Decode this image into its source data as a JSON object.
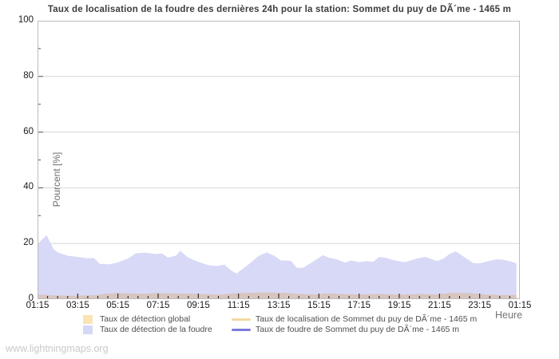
{
  "title": "Taux de localisation de la foudre des dernières 24h pour la station: Sommet du puy de DÃ´me - 1465 m",
  "watermark": "www.lightningmaps.org",
  "colors": {
    "grid": "#d6d6d6",
    "border": "#bdbdbd",
    "x_tick": "#111111",
    "y_tick": "#555555",
    "detection_foudre_fill": "#d8d9f6",
    "detection_global_rendered_fill": "#d8c5c0",
    "detection_global_swatch": "#fbe3b4",
    "localisation_line": "#f2d8a0",
    "foudre_line": "#7b7cd9"
  },
  "y_axis": {
    "label": "Pourcent  [%]",
    "major_ticks": [
      0,
      20,
      40,
      60,
      80,
      100
    ],
    "minor_ticks": [
      10,
      30,
      50,
      70,
      90
    ],
    "gridlines": [
      20,
      40,
      60,
      80
    ],
    "min": 0,
    "max": 100
  },
  "x_axis": {
    "label": "Heure",
    "tick_labels": [
      "01:15",
      "03:15",
      "05:15",
      "07:15",
      "09:15",
      "11:15",
      "13:15",
      "15:15",
      "17:15",
      "19:15",
      "21:15",
      "23:15",
      "01:15"
    ],
    "label_interval_hours": 2,
    "minor_tick_interval_hours": 0.5,
    "span_hours": 24
  },
  "legend": {
    "global": {
      "label": "Taux de détection global",
      "swatch": "box",
      "color": "#fbe3b4"
    },
    "foudre": {
      "label": "Taux de détection de la foudre",
      "swatch": "box",
      "color": "#d6d8f7"
    },
    "localisation_line": {
      "label": "Taux de localisation de Sommet du puy de DÃ´me - 1465 m",
      "swatch": "line",
      "color": "#f2d8a0"
    },
    "foudre_line": {
      "label": "Taux de foudre de Sommet du puy de DÃ´me - 1465 m",
      "swatch": "line",
      "color": "#7b7cd9"
    }
  },
  "chart_data": {
    "type": "area",
    "title": "Taux de localisation de la foudre des dernières 24h pour la station: Sommet du puy de DÃ´me - 1465 m",
    "xlabel": "Heure",
    "ylabel": "Pourcent  [%]",
    "x_is_hours_after": "01:15",
    "xlim": [
      0,
      24
    ],
    "ylim": [
      0,
      100
    ],
    "grid": "horizontal-only",
    "legend_position": "bottom",
    "series": [
      {
        "name": "Taux de détection de la foudre",
        "type": "area",
        "color": "#d8d9f6",
        "points": [
          [
            0,
            19.8
          ],
          [
            0.45,
            23.0
          ],
          [
            0.8,
            18.0
          ],
          [
            1.0,
            16.8
          ],
          [
            1.5,
            15.6
          ],
          [
            2.0,
            15.2
          ],
          [
            2.5,
            14.7
          ],
          [
            2.8,
            14.8
          ],
          [
            3.1,
            12.7
          ],
          [
            3.6,
            12.5
          ],
          [
            4.0,
            13.2
          ],
          [
            4.5,
            14.6
          ],
          [
            4.9,
            16.5
          ],
          [
            5.4,
            16.7
          ],
          [
            5.9,
            16.2
          ],
          [
            6.2,
            16.4
          ],
          [
            6.5,
            14.9
          ],
          [
            6.9,
            15.7
          ],
          [
            7.1,
            17.4
          ],
          [
            7.5,
            14.9
          ],
          [
            8.0,
            13.4
          ],
          [
            8.5,
            12.2
          ],
          [
            8.9,
            11.9
          ],
          [
            9.3,
            12.4
          ],
          [
            9.6,
            10.5
          ],
          [
            9.9,
            9.2
          ],
          [
            10.5,
            12.5
          ],
          [
            11.0,
            15.5
          ],
          [
            11.4,
            16.8
          ],
          [
            11.8,
            15.5
          ],
          [
            12.1,
            13.9
          ],
          [
            12.6,
            13.8
          ],
          [
            12.9,
            11.3
          ],
          [
            13.2,
            11.2
          ],
          [
            13.6,
            13.0
          ],
          [
            14.2,
            15.8
          ],
          [
            14.5,
            14.9
          ],
          [
            14.9,
            14.3
          ],
          [
            15.3,
            13.1
          ],
          [
            15.6,
            13.9
          ],
          [
            16.0,
            13.3
          ],
          [
            16.4,
            13.7
          ],
          [
            16.7,
            13.4
          ],
          [
            17.0,
            15.2
          ],
          [
            17.3,
            14.9
          ],
          [
            17.6,
            14.2
          ],
          [
            18.0,
            13.6
          ],
          [
            18.3,
            13.3
          ],
          [
            18.6,
            14.0
          ],
          [
            19.0,
            14.8
          ],
          [
            19.3,
            15.2
          ],
          [
            19.6,
            14.4
          ],
          [
            19.9,
            13.7
          ],
          [
            20.2,
            14.6
          ],
          [
            20.5,
            16.2
          ],
          [
            20.8,
            17.2
          ],
          [
            21.1,
            15.8
          ],
          [
            21.4,
            14.3
          ],
          [
            21.7,
            12.9
          ],
          [
            22.0,
            12.9
          ],
          [
            22.4,
            13.6
          ],
          [
            22.8,
            14.3
          ],
          [
            23.1,
            14.2
          ],
          [
            23.4,
            13.8
          ],
          [
            23.83,
            12.9
          ]
        ]
      },
      {
        "name": "Taux de détection global",
        "type": "area",
        "color": "#f5deb3",
        "rendered_fill": "#d8c5c0",
        "points": [
          [
            0,
            1.7
          ],
          [
            0.5,
            1.5
          ],
          [
            1,
            1.3
          ],
          [
            2,
            1.2
          ],
          [
            3,
            1.5
          ],
          [
            3.3,
            1.9
          ],
          [
            4,
            2.2
          ],
          [
            4.6,
            2.1
          ],
          [
            5.3,
            1.9
          ],
          [
            6,
            2.2
          ],
          [
            6.6,
            2.1
          ],
          [
            7.3,
            2.0
          ],
          [
            8,
            1.9
          ],
          [
            9,
            1.6
          ],
          [
            9.8,
            2.1
          ],
          [
            10.5,
            2.3
          ],
          [
            11.5,
            2.4
          ],
          [
            12.3,
            2.3
          ],
          [
            13,
            1.9
          ],
          [
            13.8,
            1.7
          ],
          [
            14.5,
            2.1
          ],
          [
            15.3,
            1.8
          ],
          [
            16,
            1.7
          ],
          [
            17,
            1.9
          ],
          [
            18,
            1.6
          ],
          [
            19,
            1.9
          ],
          [
            19.8,
            1.7
          ],
          [
            20.6,
            2.2
          ],
          [
            21.4,
            2.2
          ],
          [
            22.3,
            1.7
          ],
          [
            23,
            1.5
          ],
          [
            23.83,
            1.5
          ]
        ]
      },
      {
        "name": "Taux de localisation de Sommet du puy de DÃ´me - 1465 m",
        "type": "line",
        "color": "#f2d8a0",
        "visible_curve": false,
        "points": []
      },
      {
        "name": "Taux de foudre de Sommet du puy de DÃ´me - 1465 m",
        "type": "line",
        "color": "#7b7cd9",
        "visible_curve": false,
        "points": []
      }
    ]
  }
}
